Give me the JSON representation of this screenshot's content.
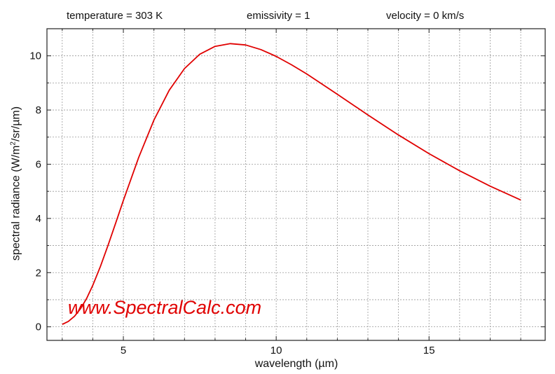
{
  "header": {
    "temperature": "temperature = 303 K",
    "emissivity": "emissivity = 1",
    "velocity": "velocity = 0 km/s"
  },
  "watermark": "www.SpectralCalc.com",
  "chart_data": {
    "type": "line",
    "title": "",
    "xlabel": "wavelength (µm)",
    "ylabel_parts": [
      "spectral radiance (W/m",
      "2",
      "/sr/µm)"
    ],
    "xlim": [
      2.5,
      18.8
    ],
    "ylim": [
      -0.5,
      11
    ],
    "xticks": [
      5,
      10,
      15
    ],
    "yticks": [
      0,
      2,
      4,
      6,
      8,
      10
    ],
    "grid": true,
    "line_color": "#e00000",
    "series": [
      {
        "x": [
          3.0,
          3.2,
          3.4,
          3.6,
          3.8,
          4.0,
          4.25,
          4.5,
          4.75,
          5.0,
          5.5,
          6.0,
          6.5,
          7.0,
          7.5,
          8.0,
          8.5,
          9.0,
          9.5,
          10.0,
          10.5,
          11.0,
          12.0,
          13.0,
          14.0,
          15.0,
          16.0,
          17.0,
          18.0
        ],
        "y": [
          0.09,
          0.2,
          0.39,
          0.67,
          1.05,
          1.53,
          2.23,
          3.01,
          3.83,
          4.66,
          6.25,
          7.63,
          8.73,
          9.53,
          10.06,
          10.35,
          10.45,
          10.4,
          10.23,
          9.98,
          9.67,
          9.33,
          8.58,
          7.82,
          7.08,
          6.39,
          5.76,
          5.19,
          4.68
        ]
      }
    ]
  }
}
